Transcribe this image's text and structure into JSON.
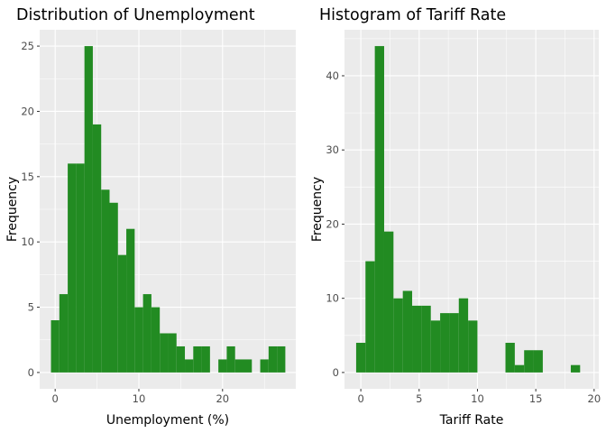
{
  "chart_data": [
    {
      "type": "bar",
      "title": "Distribution of Unemployment",
      "xlabel": "Unemployment (%)",
      "ylabel": "Frequency",
      "bin_width": 1,
      "bin_centers": [
        0,
        1,
        2,
        3,
        4,
        5,
        6,
        7,
        8,
        9,
        10,
        11,
        12,
        13,
        14,
        15,
        16,
        17,
        18,
        19,
        20,
        21,
        22,
        23,
        24,
        25,
        26,
        27
      ],
      "values": [
        4,
        6,
        16,
        16,
        25,
        19,
        14,
        13,
        9,
        11,
        5,
        6,
        5,
        3,
        3,
        2,
        1,
        2,
        2,
        0,
        1,
        2,
        1,
        1,
        0,
        1,
        2,
        2
      ],
      "xticks": [
        0,
        10,
        20
      ],
      "yticks": [
        0,
        5,
        10,
        15,
        20,
        25
      ],
      "xlim": [
        -1.85,
        28.75
      ],
      "ylim": [
        -1.25,
        26.25
      ],
      "grid": true,
      "bar_color": "#228B22",
      "panel_color": "#EBEBEB"
    },
    {
      "type": "bar",
      "title": "Histogram of Tariff Rate",
      "xlabel": "Tariff Rate",
      "ylabel": "Frequency",
      "bin_width": 0.8,
      "bin_centers": [
        0,
        0.8,
        1.6,
        2.4,
        3.2,
        4.0,
        4.8,
        5.6,
        6.4,
        7.2,
        8.0,
        8.8,
        9.6,
        10.4,
        11.2,
        12.0,
        12.8,
        13.6,
        14.4,
        15.2,
        16.0,
        16.8,
        17.6,
        18.4,
        19.2
      ],
      "values": [
        4,
        15,
        44,
        19,
        10,
        11,
        9,
        9,
        7,
        8,
        8,
        10,
        7,
        0,
        0,
        0,
        4,
        1,
        3,
        3,
        0,
        0,
        0,
        1,
        0
      ],
      "xticks": [
        0,
        5,
        10,
        15,
        20
      ],
      "yticks": [
        0,
        10,
        20,
        30,
        40
      ],
      "xlim": [
        -1.4,
        20.4
      ],
      "ylim": [
        -2.2,
        46.2
      ],
      "grid": true,
      "bar_color": "#228B22",
      "panel_color": "#EBEBEB"
    }
  ]
}
